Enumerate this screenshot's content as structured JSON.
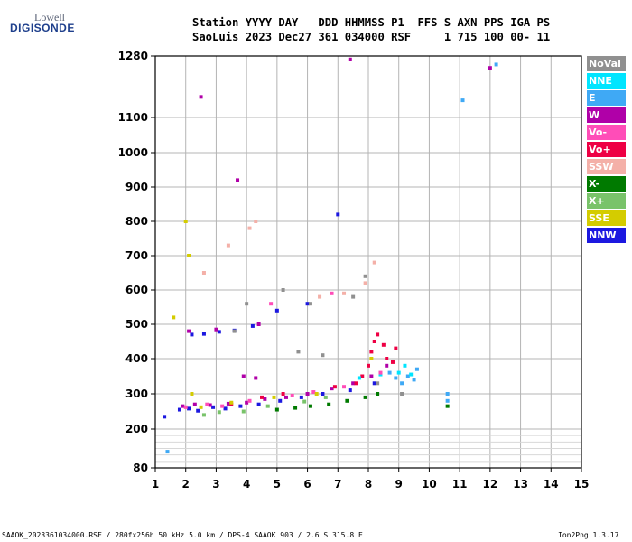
{
  "logo": {
    "line1": "Lowell",
    "line2": "DIGISONDE"
  },
  "header": {
    "line1": "Station YYYY DAY   DDD HHMMSS P1  FFS S AXN PPS IGA PS",
    "line2": "SaoLuis 2023 Dec27 361 034000 RSF     1 715 100 00- 11"
  },
  "footer": {
    "left": "SAAOK_2023361034000.RSF / 280fx256h 50 kHz 5.0 km / DPS-4 SAAOK 903 / 2.6 S 315.8 E",
    "right": "Ion2Png 1.3.17"
  },
  "legend": [
    {
      "label": "NoVal",
      "color": "#909090"
    },
    {
      "label": "NNE",
      "color": "#00e5ff"
    },
    {
      "label": "E",
      "color": "#3fa9f5"
    },
    {
      "label": "W",
      "color": "#b000a8"
    },
    {
      "label": "Vo-",
      "color": "#ff4db8"
    },
    {
      "label": "Vo+",
      "color": "#ee0044"
    },
    {
      "label": "SSW",
      "color": "#f4b0a8"
    },
    {
      "label": "X-",
      "color": "#007a00"
    },
    {
      "label": "X+",
      "color": "#79c36a"
    },
    {
      "label": "SSE",
      "color": "#d4cc00"
    },
    {
      "label": "NNW",
      "color": "#1c18e0"
    }
  ],
  "chart_data": {
    "type": "scatter",
    "title": "",
    "xlabel": "",
    "ylabel": "",
    "xlim": [
      1,
      15
    ],
    "ylim": [
      80,
      1280
    ],
    "x_ticks": [
      1,
      2,
      3,
      4,
      5,
      6,
      7,
      8,
      9,
      10,
      11,
      12,
      13,
      14,
      15
    ],
    "y_ticks": [
      80,
      200,
      300,
      400,
      500,
      600,
      700,
      800,
      900,
      1000,
      1100,
      1280
    ],
    "grid": true,
    "series": [
      {
        "name": "NNW",
        "points": [
          [
            1.8,
            255
          ],
          [
            2.1,
            258
          ],
          [
            2.4,
            252
          ],
          [
            2.9,
            262
          ],
          [
            3.3,
            258
          ],
          [
            3.8,
            265
          ],
          [
            4.4,
            270
          ],
          [
            5.1,
            280
          ],
          [
            5.8,
            290
          ],
          [
            6.5,
            300
          ],
          [
            7.4,
            310
          ],
          [
            8.2,
            330
          ],
          [
            1.3,
            235
          ],
          [
            2.2,
            470
          ],
          [
            2.6,
            472
          ],
          [
            3.1,
            478
          ],
          [
            3.6,
            482
          ],
          [
            4.2,
            495
          ],
          [
            5.0,
            540
          ],
          [
            6.0,
            560
          ],
          [
            7.0,
            820
          ]
        ]
      },
      {
        "name": "W",
        "points": [
          [
            1.9,
            265
          ],
          [
            2.3,
            270
          ],
          [
            2.8,
            268
          ],
          [
            3.4,
            272
          ],
          [
            4.0,
            275
          ],
          [
            4.6,
            285
          ],
          [
            5.3,
            290
          ],
          [
            6.0,
            300
          ],
          [
            6.8,
            315
          ],
          [
            7.5,
            330
          ],
          [
            8.1,
            350
          ],
          [
            8.6,
            380
          ],
          [
            3.9,
            350
          ],
          [
            4.3,
            345
          ],
          [
            2.5,
            1160
          ],
          [
            3.7,
            920
          ],
          [
            7.4,
            1270
          ],
          [
            12.0,
            1245
          ],
          [
            2.1,
            480
          ],
          [
            3.0,
            485
          ],
          [
            4.4,
            500
          ]
        ]
      },
      {
        "name": "Vo+",
        "points": [
          [
            7.8,
            350
          ],
          [
            8.0,
            380
          ],
          [
            8.1,
            420
          ],
          [
            8.2,
            450
          ],
          [
            8.3,
            470
          ],
          [
            8.5,
            440
          ],
          [
            8.6,
            400
          ],
          [
            8.8,
            390
          ],
          [
            8.9,
            430
          ],
          [
            7.6,
            330
          ],
          [
            6.9,
            320
          ],
          [
            5.2,
            300
          ],
          [
            4.5,
            290
          ],
          [
            3.5,
            270
          ]
        ]
      },
      {
        "name": "E",
        "points": [
          [
            8.7,
            360
          ],
          [
            8.9,
            345
          ],
          [
            9.1,
            330
          ],
          [
            9.3,
            350
          ],
          [
            9.5,
            340
          ],
          [
            9.6,
            370
          ],
          [
            10.6,
            300
          ],
          [
            10.6,
            280
          ],
          [
            11.1,
            1150
          ],
          [
            12.2,
            1255
          ],
          [
            1.4,
            130
          ]
        ]
      },
      {
        "name": "NNE",
        "points": [
          [
            9.0,
            360
          ],
          [
            9.4,
            355
          ],
          [
            9.2,
            380
          ],
          [
            8.4,
            355
          ],
          [
            7.7,
            345
          ]
        ]
      },
      {
        "name": "Vo-",
        "points": [
          [
            2.0,
            262
          ],
          [
            2.7,
            270
          ],
          [
            3.2,
            265
          ],
          [
            4.1,
            280
          ],
          [
            5.5,
            295
          ],
          [
            6.2,
            305
          ],
          [
            7.2,
            320
          ],
          [
            8.4,
            360
          ],
          [
            4.8,
            560
          ],
          [
            6.8,
            590
          ]
        ]
      },
      {
        "name": "X-",
        "points": [
          [
            5.0,
            255
          ],
          [
            5.6,
            260
          ],
          [
            6.1,
            265
          ],
          [
            6.7,
            270
          ],
          [
            7.3,
            280
          ],
          [
            7.9,
            290
          ],
          [
            8.3,
            300
          ],
          [
            10.6,
            265
          ]
        ]
      },
      {
        "name": "X+",
        "points": [
          [
            2.6,
            240
          ],
          [
            3.1,
            248
          ],
          [
            3.9,
            250
          ],
          [
            4.7,
            265
          ],
          [
            5.9,
            278
          ],
          [
            6.6,
            290
          ]
        ]
      },
      {
        "name": "SSE",
        "points": [
          [
            2.2,
            300
          ],
          [
            2.5,
            262
          ],
          [
            3.5,
            275
          ],
          [
            4.9,
            290
          ],
          [
            6.3,
            300
          ],
          [
            2.0,
            800
          ],
          [
            2.1,
            700
          ],
          [
            1.6,
            520
          ],
          [
            8.1,
            400
          ]
        ]
      },
      {
        "name": "SSW",
        "points": [
          [
            2.6,
            650
          ],
          [
            3.4,
            730
          ],
          [
            4.3,
            800
          ],
          [
            4.1,
            780
          ],
          [
            6.4,
            580
          ],
          [
            7.2,
            590
          ],
          [
            7.9,
            620
          ],
          [
            8.2,
            680
          ]
        ]
      },
      {
        "name": "NoVal",
        "points": [
          [
            3.6,
            480
          ],
          [
            4.0,
            560
          ],
          [
            5.2,
            600
          ],
          [
            6.1,
            560
          ],
          [
            7.5,
            580
          ],
          [
            7.9,
            640
          ],
          [
            8.3,
            330
          ],
          [
            9.1,
            300
          ],
          [
            5.7,
            420
          ],
          [
            6.5,
            410
          ]
        ]
      }
    ]
  }
}
